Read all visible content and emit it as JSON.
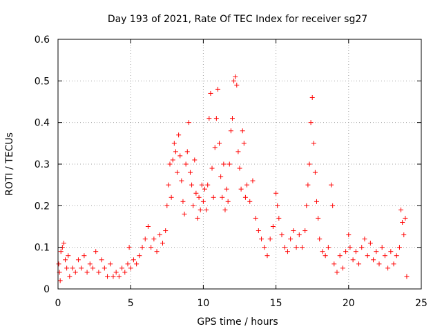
{
  "chart_data": {
    "type": "scatter",
    "title": "Day 193 of 2021, Rate Of TEC Index for receiver sg27",
    "xlabel": "GPS time / hours",
    "ylabel": "ROTI / TECUs",
    "xlim": [
      0,
      25
    ],
    "ylim": [
      0,
      0.6
    ],
    "xticks": [
      0,
      5,
      10,
      15,
      20,
      25
    ],
    "yticks": [
      0,
      0.1,
      0.2,
      0.3,
      0.4,
      0.5,
      0.6
    ],
    "xtick_labels": [
      "0",
      "5",
      "10",
      "15",
      "20",
      "25"
    ],
    "ytick_labels": [
      "0",
      "0.1",
      "0.2",
      "0.3",
      "0.4",
      "0.5",
      "0.6"
    ],
    "grid": true,
    "marker": "+",
    "colors": {
      "points": "#ff0000",
      "grid": "#a0a0a0",
      "axes": "#000000"
    },
    "series": [
      {
        "values": [
          [
            0.05,
            0.06
          ],
          [
            0.1,
            0.04
          ],
          [
            0.15,
            0.02
          ],
          [
            0.2,
            0.09
          ],
          [
            0.3,
            0.1
          ],
          [
            0.4,
            0.11
          ],
          [
            0.5,
            0.07
          ],
          [
            0.6,
            0.05
          ],
          [
            0.7,
            0.08
          ],
          [
            0.8,
            0.03
          ],
          [
            1.0,
            0.05
          ],
          [
            1.2,
            0.04
          ],
          [
            1.4,
            0.07
          ],
          [
            1.6,
            0.05
          ],
          [
            1.8,
            0.08
          ],
          [
            2.0,
            0.04
          ],
          [
            2.2,
            0.06
          ],
          [
            2.4,
            0.05
          ],
          [
            2.6,
            0.09
          ],
          [
            2.8,
            0.04
          ],
          [
            3.0,
            0.07
          ],
          [
            3.2,
            0.05
          ],
          [
            3.4,
            0.03
          ],
          [
            3.6,
            0.06
          ],
          [
            3.8,
            0.03
          ],
          [
            4.0,
            0.04
          ],
          [
            4.2,
            0.03
          ],
          [
            4.4,
            0.05
          ],
          [
            4.6,
            0.04
          ],
          [
            4.8,
            0.06
          ],
          [
            4.9,
            0.1
          ],
          [
            5.0,
            0.05
          ],
          [
            5.2,
            0.07
          ],
          [
            5.4,
            0.06
          ],
          [
            5.6,
            0.08
          ],
          [
            5.8,
            0.1
          ],
          [
            6.0,
            0.12
          ],
          [
            6.2,
            0.15
          ],
          [
            6.4,
            0.1
          ],
          [
            6.6,
            0.12
          ],
          [
            6.8,
            0.09
          ],
          [
            7.0,
            0.13
          ],
          [
            7.2,
            0.11
          ],
          [
            7.4,
            0.14
          ],
          [
            7.5,
            0.2
          ],
          [
            7.6,
            0.25
          ],
          [
            7.7,
            0.3
          ],
          [
            7.8,
            0.22
          ],
          [
            7.9,
            0.31
          ],
          [
            8.0,
            0.35
          ],
          [
            8.1,
            0.33
          ],
          [
            8.2,
            0.28
          ],
          [
            8.3,
            0.37
          ],
          [
            8.4,
            0.32
          ],
          [
            8.5,
            0.26
          ],
          [
            8.6,
            0.21
          ],
          [
            8.7,
            0.18
          ],
          [
            8.8,
            0.3
          ],
          [
            8.9,
            0.33
          ],
          [
            9.0,
            0.4
          ],
          [
            9.1,
            0.28
          ],
          [
            9.2,
            0.25
          ],
          [
            9.3,
            0.2
          ],
          [
            9.4,
            0.31
          ],
          [
            9.5,
            0.23
          ],
          [
            9.6,
            0.17
          ],
          [
            9.7,
            0.22
          ],
          [
            9.8,
            0.19
          ],
          [
            9.9,
            0.25
          ],
          [
            10.0,
            0.21
          ],
          [
            10.1,
            0.24
          ],
          [
            10.2,
            0.19
          ],
          [
            10.3,
            0.25
          ],
          [
            10.4,
            0.41
          ],
          [
            10.5,
            0.47
          ],
          [
            10.6,
            0.29
          ],
          [
            10.7,
            0.22
          ],
          [
            10.8,
            0.34
          ],
          [
            10.9,
            0.41
          ],
          [
            11.0,
            0.48
          ],
          [
            11.1,
            0.35
          ],
          [
            11.2,
            0.27
          ],
          [
            11.3,
            0.22
          ],
          [
            11.4,
            0.3
          ],
          [
            11.5,
            0.19
          ],
          [
            11.6,
            0.24
          ],
          [
            11.7,
            0.21
          ],
          [
            11.8,
            0.3
          ],
          [
            11.9,
            0.38
          ],
          [
            12.0,
            0.41
          ],
          [
            12.1,
            0.5
          ],
          [
            12.2,
            0.51
          ],
          [
            12.3,
            0.49
          ],
          [
            12.4,
            0.33
          ],
          [
            12.5,
            0.29
          ],
          [
            12.6,
            0.24
          ],
          [
            12.7,
            0.38
          ],
          [
            12.8,
            0.35
          ],
          [
            12.9,
            0.22
          ],
          [
            13.0,
            0.25
          ],
          [
            13.2,
            0.21
          ],
          [
            13.4,
            0.26
          ],
          [
            13.6,
            0.17
          ],
          [
            13.8,
            0.14
          ],
          [
            14.0,
            0.12
          ],
          [
            14.2,
            0.1
          ],
          [
            14.4,
            0.08
          ],
          [
            14.6,
            0.12
          ],
          [
            14.8,
            0.15
          ],
          [
            15.0,
            0.23
          ],
          [
            15.1,
            0.2
          ],
          [
            15.2,
            0.17
          ],
          [
            15.4,
            0.13
          ],
          [
            15.6,
            0.1
          ],
          [
            15.8,
            0.09
          ],
          [
            16.0,
            0.12
          ],
          [
            16.2,
            0.14
          ],
          [
            16.4,
            0.1
          ],
          [
            16.6,
            0.13
          ],
          [
            16.8,
            0.1
          ],
          [
            17.0,
            0.14
          ],
          [
            17.1,
            0.2
          ],
          [
            17.2,
            0.25
          ],
          [
            17.3,
            0.3
          ],
          [
            17.4,
            0.4
          ],
          [
            17.5,
            0.46
          ],
          [
            17.6,
            0.35
          ],
          [
            17.7,
            0.28
          ],
          [
            17.8,
            0.21
          ],
          [
            17.9,
            0.17
          ],
          [
            18.0,
            0.12
          ],
          [
            18.2,
            0.09
          ],
          [
            18.4,
            0.08
          ],
          [
            18.6,
            0.1
          ],
          [
            18.8,
            0.25
          ],
          [
            18.9,
            0.2
          ],
          [
            19.0,
            0.06
          ],
          [
            19.2,
            0.04
          ],
          [
            19.4,
            0.08
          ],
          [
            19.6,
            0.05
          ],
          [
            19.8,
            0.09
          ],
          [
            20.0,
            0.13
          ],
          [
            20.1,
            0.1
          ],
          [
            20.3,
            0.07
          ],
          [
            20.5,
            0.09
          ],
          [
            20.7,
            0.06
          ],
          [
            20.9,
            0.1
          ],
          [
            21.1,
            0.12
          ],
          [
            21.3,
            0.08
          ],
          [
            21.5,
            0.11
          ],
          [
            21.7,
            0.07
          ],
          [
            21.9,
            0.09
          ],
          [
            22.1,
            0.06
          ],
          [
            22.3,
            0.1
          ],
          [
            22.5,
            0.08
          ],
          [
            22.7,
            0.05
          ],
          [
            22.9,
            0.09
          ],
          [
            23.1,
            0.06
          ],
          [
            23.3,
            0.08
          ],
          [
            23.5,
            0.1
          ],
          [
            23.6,
            0.19
          ],
          [
            23.7,
            0.16
          ],
          [
            23.8,
            0.13
          ],
          [
            23.9,
            0.17
          ],
          [
            24.0,
            0.03
          ]
        ]
      }
    ]
  }
}
